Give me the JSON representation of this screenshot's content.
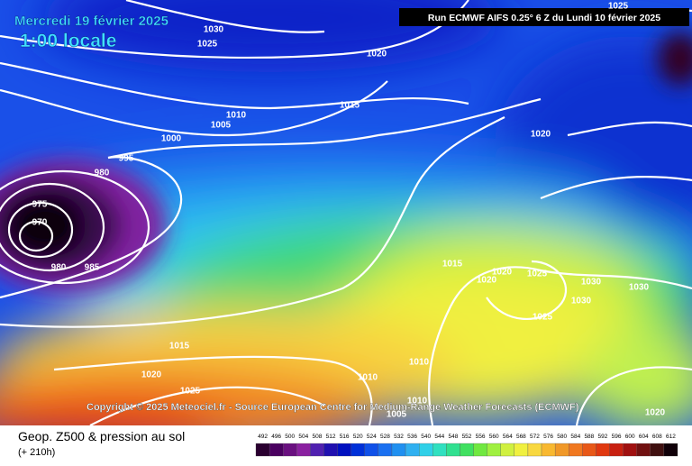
{
  "header": {
    "date": "Mercredi 19 février 2025",
    "time": "1:00 locale",
    "run": "Run ECMWF AIFS 0.25° 6 Z du Lundi 10 février 2025"
  },
  "isobars": [
    "1030",
    "1025",
    "1020",
    "1015",
    "1010",
    "1005",
    "1000",
    "995",
    "980",
    "975",
    "970",
    "980",
    "985",
    "1020",
    "1025",
    "1015",
    "1020",
    "1020",
    "1025",
    "1030",
    "1030",
    "1030",
    "1025",
    "1015",
    "1020",
    "1025",
    "1010",
    "1010",
    "1010",
    "1005",
    "1020"
  ],
  "copyright": "Copyright © 2025 Meteociel.fr - Source European Centre for Medium-Range Weather Forecasts (ECMWF)",
  "footer": {
    "title": "Geop. Z500 & pression au sol",
    "lead": "(+ 210h)"
  },
  "legend": {
    "labels": [
      492,
      496,
      500,
      504,
      508,
      512,
      516,
      520,
      524,
      528,
      532,
      536,
      540,
      544,
      548,
      552,
      556,
      560,
      564,
      568,
      572,
      576,
      580,
      584,
      588,
      592,
      596,
      600,
      604,
      608,
      612
    ]
  }
}
